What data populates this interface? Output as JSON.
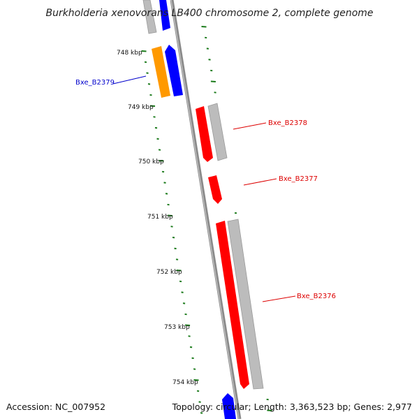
{
  "title": "Burkholderia xenovorans LB400 chromosome 2, complete genome",
  "footer": {
    "accession": "Accession: NC_007952",
    "topology": "Topology: circular; Length: 3,363,523 bp; Genes: 2,977"
  },
  "colors": {
    "backbone": "#8a8a8a",
    "tick": "#1a7a1a",
    "forward_gene": "#ff0000",
    "reverse_gene": "#0000ff",
    "orange_gene": "#ff9900",
    "gray_gene": "#bcbcbc",
    "label_red": "#dd0000",
    "label_blue": "#0000cc"
  },
  "kbp_labels": [
    "748 kbp",
    "749 kbp",
    "750 kbp",
    "751 kbp",
    "752 kbp",
    "753 kbp",
    "754 kbp"
  ],
  "gene_labels": [
    {
      "text": "Bxe_B2379",
      "color": "blue"
    },
    {
      "text": "Bxe_B2378",
      "color": "red"
    },
    {
      "text": "Bxe_B2377",
      "color": "red"
    },
    {
      "text": "Bxe_B2376",
      "color": "red"
    }
  ]
}
